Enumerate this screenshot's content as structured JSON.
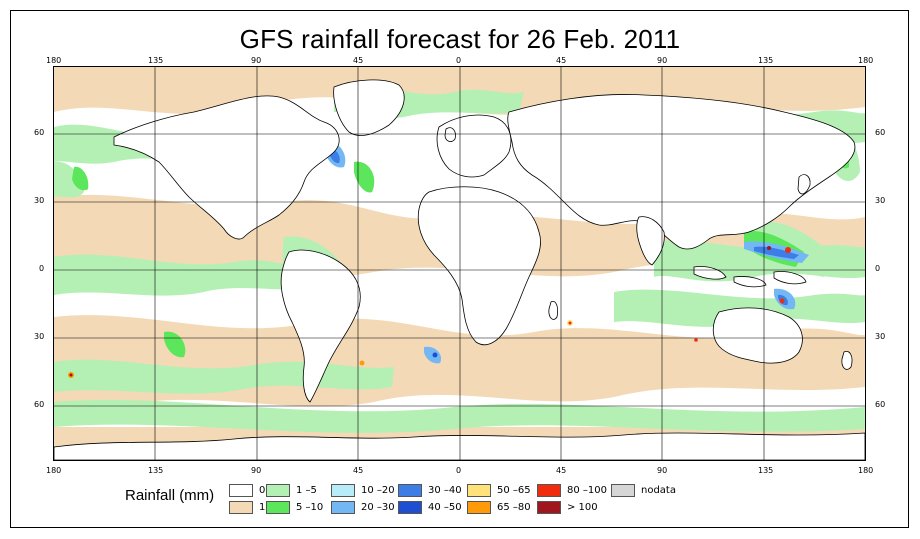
{
  "title": "GFS rainfall forecast for 26 Feb. 2011",
  "lon_ticks": [
    "180",
    "135",
    "90",
    "45",
    "0",
    "45",
    "90",
    "135",
    "180"
  ],
  "lat_ticks": [
    "60",
    "30",
    "0",
    "30",
    "60"
  ],
  "legend": {
    "title": "Rainfall (mm)",
    "items": [
      {
        "label": "0",
        "color": "#ffffff"
      },
      {
        "label": "1",
        "color": "#f3d9b5"
      },
      {
        "label": "1 –5",
        "color": "#b4f0b4"
      },
      {
        "label": "5 –10",
        "color": "#5ce65c"
      },
      {
        "label": "10 –20",
        "color": "#b8ecf8"
      },
      {
        "label": "20 –30",
        "color": "#73b8f5"
      },
      {
        "label": "30 –40",
        "color": "#3d7de6"
      },
      {
        "label": "40 –50",
        "color": "#1f4fd1"
      },
      {
        "label": "50 –65",
        "color": "#ffe27a"
      },
      {
        "label": "65 –80",
        "color": "#ff9a0a"
      },
      {
        "label": "80 –100",
        "color": "#f02c0f"
      },
      {
        "label": "> 100",
        "color": "#a0161e"
      },
      {
        "label": "nodata",
        "color": "#d6d6d6"
      }
    ]
  }
}
